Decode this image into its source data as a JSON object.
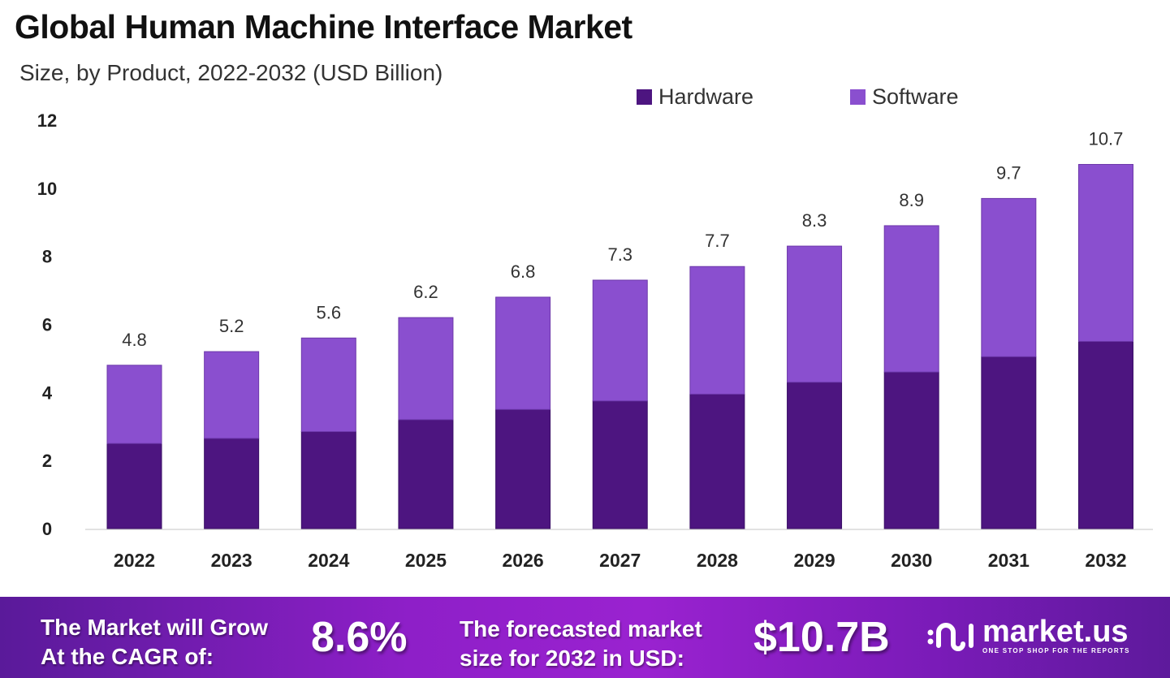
{
  "chart_data": {
    "type": "bar",
    "stacked": true,
    "title": "Global Human Machine Interface Market",
    "subtitle": "Size, by Product, 2022-2032 (USD Billion)",
    "xlabel": "",
    "ylabel": "",
    "categories": [
      "2022",
      "2023",
      "2024",
      "2025",
      "2026",
      "2027",
      "2028",
      "2029",
      "2030",
      "2031",
      "2032"
    ],
    "series": [
      {
        "name": "Hardware",
        "color": "#4d1580",
        "values": [
          2.5,
          2.65,
          2.85,
          3.2,
          3.5,
          3.75,
          3.95,
          4.3,
          4.6,
          5.05,
          5.5
        ]
      },
      {
        "name": "Software",
        "color": "#8a4fcf",
        "values": [
          2.3,
          2.55,
          2.75,
          3.0,
          3.3,
          3.55,
          3.75,
          4.0,
          4.3,
          4.65,
          5.2
        ]
      }
    ],
    "totals": [
      "4.8",
      "5.2",
      "5.6",
      "6.2",
      "6.8",
      "7.3",
      "7.7",
      "8.3",
      "8.9",
      "9.7",
      "10.7"
    ],
    "ylim": [
      0,
      12
    ],
    "yticks": [
      "0",
      "2",
      "4",
      "6",
      "8",
      "10",
      "12"
    ],
    "grid": false,
    "legend_position": "top-right"
  },
  "banner": {
    "cagr_label_1": "The Market will Grow",
    "cagr_label_2": "At the CAGR of:",
    "cagr_value": "8.6%",
    "forecast_label_1": "The forecasted market",
    "forecast_label_2": "size for 2032 in USD:",
    "forecast_value": "$10.7B",
    "logo_name": "market.us",
    "logo_tagline": "ONE STOP SHOP FOR THE REPORTS"
  }
}
